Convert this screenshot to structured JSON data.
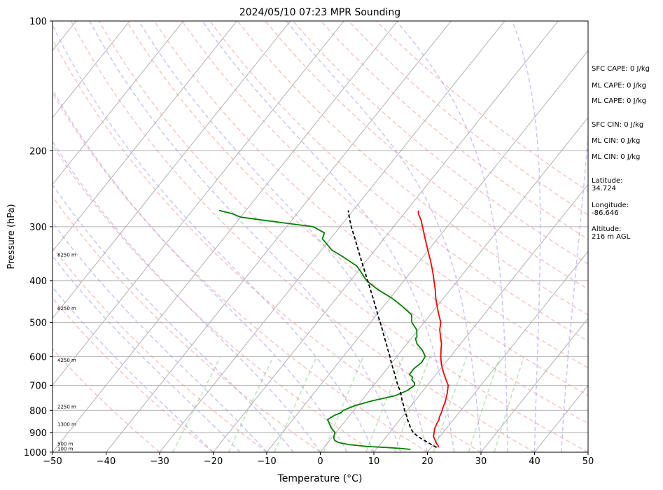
{
  "chart_data": {
    "type": "line",
    "title": "2024/05/10 07:23 MPR Sounding",
    "xlabel": "Temperature (°C)",
    "ylabel": "Pressure (hPa)",
    "xlim": [
      -50,
      50
    ],
    "ylim": [
      1000,
      100
    ],
    "y_scale": "log",
    "x_ticks": [
      -50,
      -40,
      -30,
      -20,
      -10,
      0,
      10,
      20,
      30,
      40,
      50
    ],
    "y_ticks": [
      100,
      200,
      300,
      400,
      500,
      600,
      700,
      800,
      900,
      1000
    ],
    "x_tick_labels": [
      "−50",
      "−40",
      "−30",
      "−20",
      "−10",
      "0",
      "10",
      "20",
      "30",
      "40",
      "50"
    ],
    "y_tick_labels": [
      "100",
      "200",
      "300",
      "400",
      "500",
      "600",
      "700",
      "800",
      "900",
      "1000"
    ],
    "grid": true,
    "height_labels": [
      {
        "p": 980,
        "text": "100 m"
      },
      {
        "p": 955,
        "text": "500 m"
      },
      {
        "p": 860,
        "text": "1300 m"
      },
      {
        "p": 783,
        "text": "2250 m"
      },
      {
        "p": 610,
        "text": "4250 m"
      },
      {
        "p": 463,
        "text": "6250 m"
      },
      {
        "p": 348,
        "text": "8250 m"
      }
    ],
    "series": [
      {
        "color": "#ff0000",
        "style": "solid",
        "p": [
          975,
          965,
          950,
          935,
          920,
          900,
          880,
          860,
          840,
          830,
          810,
          790,
          760,
          730,
          700,
          680,
          660,
          640,
          620,
          600,
          580,
          560,
          540,
          520,
          500,
          480,
          460,
          440,
          420,
          400,
          380,
          360,
          340,
          320,
          300,
          290,
          280,
          275
        ],
        "t": [
          21.3,
          21.0,
          20.2,
          19.5,
          18.8,
          18.3,
          17.8,
          17.5,
          17.3,
          17.0,
          16.7,
          16.3,
          15.7,
          14.9,
          13.9,
          12.7,
          11.5,
          10.3,
          9.2,
          8.2,
          7.3,
          6.4,
          5.2,
          4.0,
          3.1,
          1.6,
          0.1,
          -1.4,
          -2.8,
          -4.4,
          -6.1,
          -8.0,
          -10.1,
          -12.3,
          -14.6,
          -15.8,
          -17.3,
          -17.8
        ]
      },
      {
        "color": "#008000",
        "style": "solid",
        "p": [
          985,
          980,
          975,
          970,
          960,
          950,
          940,
          930,
          920,
          900,
          880,
          860,
          840,
          830,
          820,
          810,
          800,
          780,
          760,
          740,
          720,
          700,
          690,
          680,
          670,
          660,
          640,
          620,
          600,
          580,
          560,
          545,
          540,
          520,
          500,
          480,
          460,
          440,
          420,
          400,
          380,
          370,
          350,
          340,
          320,
          310,
          300,
          295,
          290,
          285,
          280,
          275
        ],
        "td": [
          16.4,
          14.5,
          11.5,
          8.0,
          4.2,
          2.0,
          1.0,
          0.5,
          0.2,
          -0.2,
          -1.5,
          -2.5,
          -3.5,
          -3.2,
          -2.8,
          -2.0,
          -2.0,
          -0.5,
          2.0,
          5.5,
          7.0,
          7.6,
          7.2,
          6.3,
          6.0,
          5.0,
          5.0,
          5.5,
          5.3,
          3.8,
          1.8,
          0.8,
          0.8,
          -0.3,
          -2.3,
          -3.5,
          -6.3,
          -9.5,
          -13.5,
          -17.0,
          -19.6,
          -21.0,
          -25.5,
          -28.0,
          -31.5,
          -32.0,
          -35.0,
          -40.0,
          -45.0,
          -50.0,
          -52.0,
          -55.0
        ]
      },
      {
        "color": "#000000",
        "style": "dashed",
        "p": [
          975,
          950,
          920,
          900,
          880,
          860,
          840,
          820,
          800,
          780,
          760,
          740,
          720,
          700,
          680,
          660,
          640,
          620,
          600,
          580,
          560,
          540,
          520,
          500,
          480,
          460,
          440,
          420,
          400,
          380,
          360,
          340,
          320,
          300,
          290,
          280,
          275
        ],
        "t": [
          21.0,
          18.7,
          15.9,
          14.4,
          13.3,
          12.4,
          11.4,
          10.5,
          9.5,
          8.6,
          7.6,
          6.7,
          5.7,
          4.5,
          3.4,
          2.3,
          1.1,
          -0.1,
          -1.3,
          -2.6,
          -3.9,
          -5.3,
          -6.7,
          -8.2,
          -9.8,
          -11.4,
          -13.1,
          -14.9,
          -16.8,
          -18.8,
          -20.9,
          -23.1,
          -25.4,
          -27.9,
          -29.1,
          -30.3,
          -30.9
        ]
      }
    ]
  },
  "annotations": [
    "SFC CAPE: 0 J/kg",
    "ML CAPE: 0 J/kg",
    "ML CAPE: 0 J/kg",
    "SFC CIN: 0 J/kg",
    "ML CIN: 0 J/kg",
    "ML CIN: 0 J/kg",
    "Latitude:\n34.724",
    "Longitude:\n-86.646",
    "Altitude:\n216 m AGL"
  ]
}
